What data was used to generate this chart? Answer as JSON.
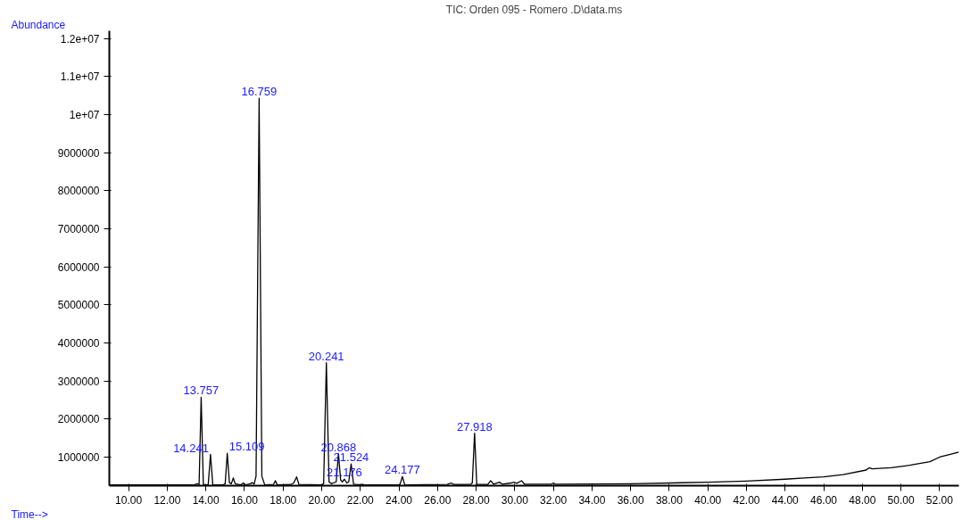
{
  "chart_data": {
    "type": "line",
    "title": "TIC: Orden 095 - Romero .D\\data.ms",
    "xlabel": "Time-->",
    "ylabel": "Abundance",
    "xlim": [
      9.0,
      53.0
    ],
    "ylim": [
      250000,
      12200000
    ],
    "xticks": [
      {
        "value": 10,
        "label": "10.00"
      },
      {
        "value": 12,
        "label": "12.00"
      },
      {
        "value": 14,
        "label": "14.00"
      },
      {
        "value": 16,
        "label": "16.00"
      },
      {
        "value": 18,
        "label": "18.00"
      },
      {
        "value": 20,
        "label": "20.00"
      },
      {
        "value": 22,
        "label": "22.00"
      },
      {
        "value": 24,
        "label": "24.00"
      },
      {
        "value": 26,
        "label": "26.00"
      },
      {
        "value": 28,
        "label": "28.00"
      },
      {
        "value": 30,
        "label": "30.00"
      },
      {
        "value": 32,
        "label": "32.00"
      },
      {
        "value": 34,
        "label": "34.00"
      },
      {
        "value": 36,
        "label": "36.00"
      },
      {
        "value": 38,
        "label": "38.00"
      },
      {
        "value": 40,
        "label": "40.00"
      },
      {
        "value": 42,
        "label": "42.00"
      },
      {
        "value": 44,
        "label": "44.00"
      },
      {
        "value": 46,
        "label": "46.00"
      },
      {
        "value": 48,
        "label": "48.00"
      },
      {
        "value": 50,
        "label": "50.00"
      },
      {
        "value": 52,
        "label": "52.00"
      }
    ],
    "yticks": [
      1000000,
      2000000,
      3000000,
      4000000,
      5000000,
      6000000,
      7000000,
      8000000,
      9000000,
      {
        "value": 10000000,
        "label": "1e+07"
      },
      {
        "value": 11000000,
        "label": "1.1e+07"
      },
      {
        "value": 12000000,
        "label": "1.2e+07"
      }
    ],
    "series": [
      {
        "color": "#000000",
        "x": [
          9.0,
          13.4,
          13.55,
          13.65,
          13.757,
          13.87,
          14.0,
          14.12,
          14.241,
          14.36,
          14.9,
          15.0,
          15.109,
          15.22,
          15.32,
          15.42,
          15.52,
          15.8,
          15.95,
          16.05,
          16.3,
          16.4,
          16.5,
          16.6,
          16.759,
          16.9,
          17.05,
          17.5,
          17.6,
          17.7,
          18.4,
          18.55,
          18.7,
          18.82,
          20.0,
          20.1,
          20.241,
          20.38,
          20.5,
          20.75,
          20.868,
          20.98,
          21.07,
          21.176,
          21.3,
          21.4,
          21.524,
          21.65,
          22.0,
          22.1,
          22.2,
          24.05,
          24.177,
          24.3,
          26.5,
          26.7,
          26.85,
          27.7,
          27.8,
          27.918,
          28.03,
          28.1,
          28.6,
          28.75,
          28.9,
          29.2,
          29.35,
          29.8,
          29.95,
          30.1,
          30.35,
          30.5,
          31.9,
          32.0,
          32.1,
          36.0,
          40.0,
          42.0,
          44.0,
          45.0,
          46.0,
          47.0,
          48.2,
          48.35,
          48.5,
          49.5,
          50.5,
          51.5,
          52.0,
          53.0
        ],
        "values": [
          270000,
          270000,
          300000,
          280000,
          2570000,
          280000,
          270000,
          270000,
          1070000,
          270000,
          270000,
          300000,
          1100000,
          330000,
          300000,
          450000,
          300000,
          270000,
          320000,
          270000,
          300000,
          330000,
          290000,
          500000,
          10430000,
          500000,
          270000,
          280000,
          380000,
          270000,
          280000,
          320000,
          480000,
          280000,
          270000,
          300000,
          3480000,
          350000,
          300000,
          350000,
          1090000,
          400000,
          350000,
          420000,
          320000,
          350000,
          820000,
          290000,
          270000,
          290000,
          270000,
          270000,
          490000,
          270000,
          280000,
          320000,
          280000,
          280000,
          320000,
          1630000,
          290000,
          280000,
          280000,
          380000,
          290000,
          340000,
          290000,
          320000,
          340000,
          310000,
          380000,
          290000,
          290000,
          320000,
          290000,
          300000,
          340000,
          370000,
          420000,
          450000,
          480000,
          540000,
          660000,
          720000,
          690000,
          720000,
          790000,
          880000,
          1000000,
          1130000
        ]
      }
    ],
    "annotations": [
      {
        "text": "13.757",
        "x": 13.757,
        "y": 2570000
      },
      {
        "text": "14.241",
        "x": 14.241,
        "y": 1070000
      },
      {
        "text": "15.109",
        "x": 15.109,
        "y": 1100000
      },
      {
        "text": "16.759",
        "x": 16.759,
        "y": 10430000
      },
      {
        "text": "20.241",
        "x": 20.241,
        "y": 3480000
      },
      {
        "text": "20.868",
        "x": 20.868,
        "y": 1090000
      },
      {
        "text": "21.176",
        "x": 21.176,
        "y": 420000
      },
      {
        "text": "21.524",
        "x": 21.524,
        "y": 820000
      },
      {
        "text": "24.177",
        "x": 24.177,
        "y": 490000
      },
      {
        "text": "27.918",
        "x": 27.918,
        "y": 1630000
      }
    ]
  }
}
